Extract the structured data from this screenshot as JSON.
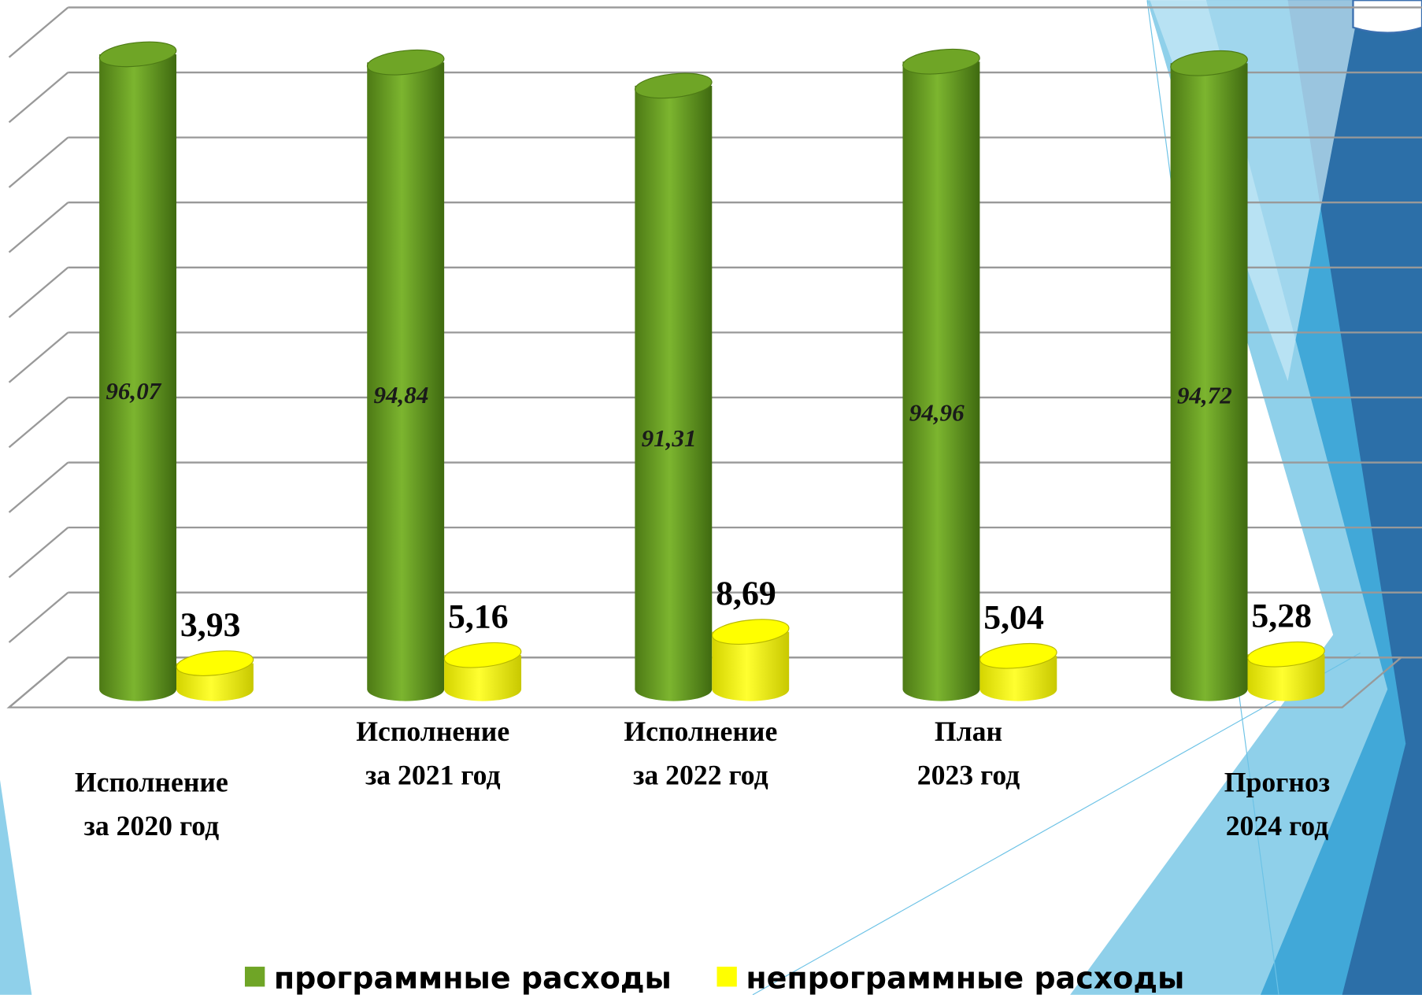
{
  "chart_data": {
    "type": "bar3d",
    "categories": [
      "Исполнение за 2020 год",
      "Исполнение за 2021 год",
      "Исполнение за 2022 год",
      "План 2023 год",
      "Прогноз 2024 год"
    ],
    "series": [
      {
        "name": "программные расходы",
        "color": "#6fa526",
        "values": [
          96.07,
          94.84,
          91.31,
          94.96,
          94.72
        ],
        "value_labels": [
          "96,07",
          "94,84",
          "91,31",
          "94,96",
          "94,72"
        ]
      },
      {
        "name": "непрограммные расходы",
        "color": "#ffff00",
        "values": [
          3.93,
          5.16,
          8.69,
          5.04,
          5.28
        ],
        "value_labels": [
          "3,93",
          "5,16",
          "8,69",
          "5,04",
          "5,28"
        ]
      }
    ],
    "ylim": [
      0,
      100
    ],
    "yticks": [
      0,
      10,
      20,
      30,
      40,
      50,
      60,
      70,
      80,
      90,
      100
    ],
    "grid": true,
    "legend": "bottom"
  }
}
